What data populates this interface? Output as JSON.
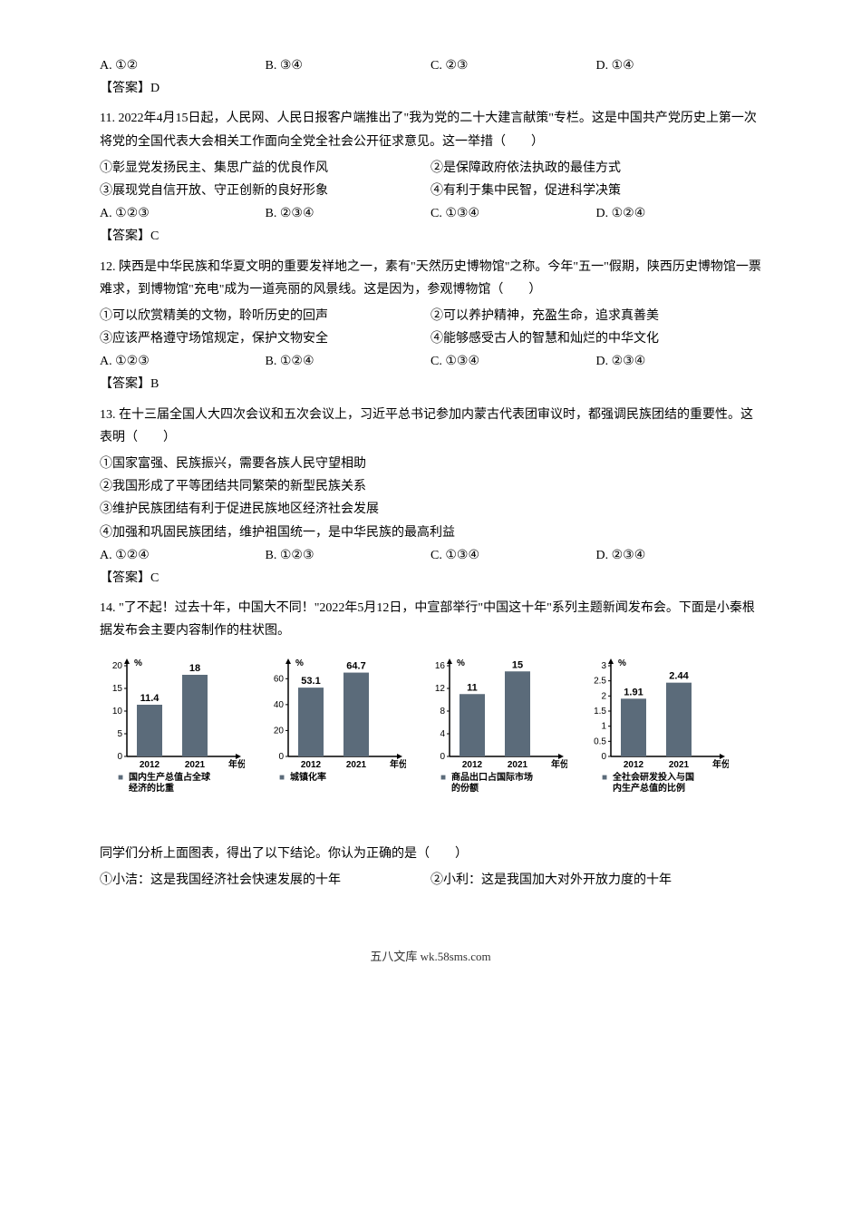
{
  "q10_options": {
    "a": "A. ①②",
    "b": "B. ③④",
    "c": "C. ②③",
    "d": "D. ①④"
  },
  "answer10": "【答案】D",
  "q11": {
    "stem": "11. 2022年4月15日起，人民网、人民日报客户端推出了\"我为党的二十大建言献策\"专栏。这是中国共产党历史上第一次将党的全国代表大会相关工作面向全党全社会公开征求意见。这一举措（　　）",
    "item1": "①彰显党发扬民主、集思广益的优良作风",
    "item2": "②是保障政府依法执政的最佳方式",
    "item3": "③展现党自信开放、守正创新的良好形象",
    "item4": "④有利于集中民智，促进科学决策",
    "a": "A. ①②③",
    "b": "B. ②③④",
    "c": "C. ①③④",
    "d": "D. ①②④"
  },
  "answer11": "【答案】C",
  "q12": {
    "stem": "12. 陕西是中华民族和华夏文明的重要发祥地之一，素有\"天然历史博物馆\"之称。今年\"五一\"假期，陕西历史博物馆一票难求，到博物馆\"充电\"成为一道亮丽的风景线。这是因为，参观博物馆（　　）",
    "item1": "①可以欣赏精美的文物，聆听历史的回声",
    "item2": "②可以养护精神，充盈生命，追求真善美",
    "item3": "③应该严格遵守场馆规定，保护文物安全",
    "item4": "④能够感受古人的智慧和灿烂的中华文化",
    "a": "A. ①②③",
    "b": "B. ①②④",
    "c": "C. ①③④",
    "d": "D. ②③④"
  },
  "answer12": "【答案】B",
  "q13": {
    "stem": "13. 在十三届全国人大四次会议和五次会议上，习近平总书记参加内蒙古代表团审议时，都强调民族团结的重要性。这表明（　　）",
    "item1": "①国家富强、民族振兴，需要各族人民守望相助",
    "item2": "②我国形成了平等团结共同繁荣的新型民族关系",
    "item3": "③维护民族团结有利于促进民族地区经济社会发展",
    "item4": "④加强和巩固民族团结，维护祖国统一，是中华民族的最高利益",
    "a": "A. ①②④",
    "b": "B. ①②③",
    "c": "C. ①③④",
    "d": "D. ②③④"
  },
  "answer13": "【答案】C",
  "q14": {
    "stem": "14. \"了不起！过去十年，中国大不同！\"2022年5月12日，中宣部举行\"中国这十年\"系列主题新闻发布会。下面是小秦根据发布会主要内容制作的柱状图。",
    "followup": "同学们分析上面图表，得出了以下结论。你认为正确的是（　　）",
    "item1": "①小洁：这是我国经济社会快速发展的十年",
    "item2": "②小利：这是我国加大对外开放力度的十年"
  },
  "charts": {
    "type": "bar",
    "bar_color": "#5b6b7a",
    "axis_color": "#000000",
    "background": "#ffffff",
    "x_categories": [
      "2012",
      "2021"
    ],
    "x_label": "年份",
    "y_unit": "%",
    "legend_marker": "■",
    "chart1": {
      "legend": "国内生产总值占全球经济的比重",
      "values": [
        11.4,
        18
      ],
      "ymax": 20,
      "ytick_step": 5,
      "yticks": [
        0,
        5,
        10,
        15,
        20
      ]
    },
    "chart2": {
      "legend": "城镇化率",
      "values": [
        53.1,
        64.7
      ],
      "ymax": 70,
      "ytick_step": 20,
      "yticks": [
        0,
        20,
        40,
        60
      ]
    },
    "chart3": {
      "legend": "商品出口占国际市场的份额",
      "values": [
        11,
        15
      ],
      "ymax": 16,
      "ytick_step": 4,
      "yticks": [
        0,
        4,
        8,
        12,
        16
      ]
    },
    "chart4": {
      "legend": "全社会研发投入与国内生产总值的比例",
      "values": [
        1.91,
        2.44
      ],
      "ymax": 3,
      "ytick_step": 0.5,
      "yticks": [
        0,
        0.5,
        1,
        1.5,
        2,
        2.5,
        3
      ]
    }
  },
  "footer": "五八文库 wk.58sms.com"
}
